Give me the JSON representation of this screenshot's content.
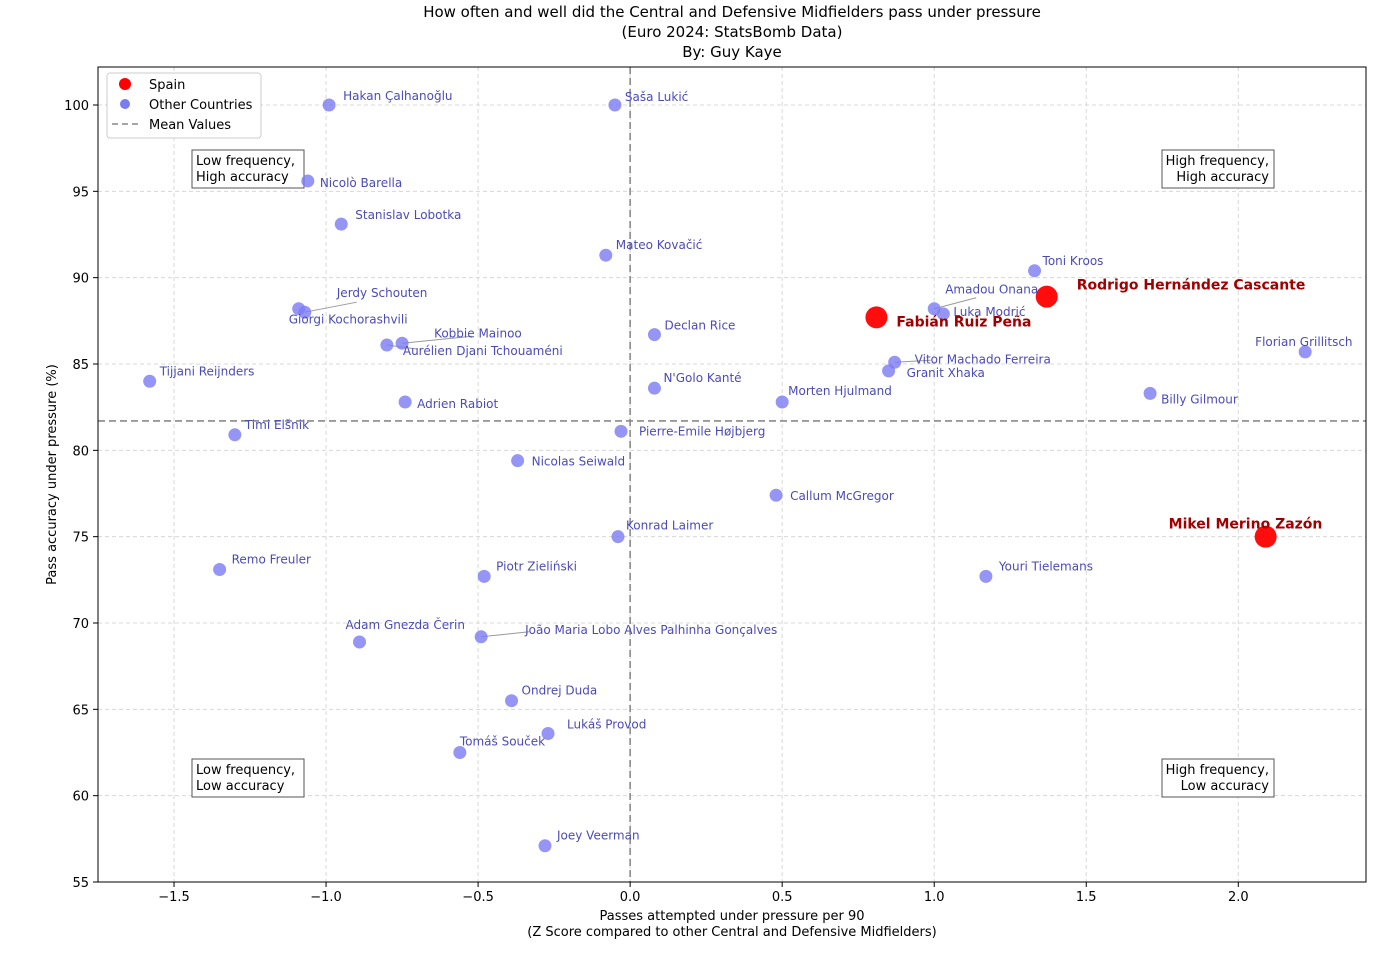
{
  "chart_data": {
    "type": "scatter",
    "title": [
      "How often and well did the Central and Defensive Midfielders pass under pressure",
      "(Euro 2024: StatsBomb Data)",
      "By: Guy Kaye"
    ],
    "xlabel": [
      "Passes attempted under pressure per 90",
      "(Z Score compared to other Central and Defensive Midfielders)"
    ],
    "ylabel": "Pass accuracy under pressure (%)",
    "xlim": [
      -1.75,
      2.42
    ],
    "ylim": [
      55,
      102.2
    ],
    "xticks": [
      -1.5,
      -1.0,
      -0.5,
      0.0,
      0.5,
      1.0,
      1.5,
      2.0
    ],
    "xtick_labels": [
      "−1.5",
      "−1.0",
      "−0.5",
      "0.0",
      "0.5",
      "1.0",
      "1.5",
      "2.0"
    ],
    "yticks": [
      55,
      60,
      65,
      70,
      75,
      80,
      85,
      90,
      95,
      100
    ],
    "ytick_labels": [
      "55",
      "60",
      "65",
      "70",
      "75",
      "80",
      "85",
      "90",
      "95",
      "100"
    ],
    "grid": true,
    "legend_position": "top-left",
    "legend": [
      {
        "label": "Spain",
        "kind": "marker",
        "color": "#ff0000"
      },
      {
        "label": "Other Countries",
        "kind": "marker",
        "color": "#7b7bf2"
      },
      {
        "label": "Mean Values",
        "kind": "dashed-line",
        "color": "#888888"
      }
    ],
    "mean_lines": {
      "x": 0.0,
      "y": 81.7
    },
    "quadrant_labels": [
      {
        "lines": [
          "Low frequency,",
          "High accuracy"
        ],
        "position": "top-left"
      },
      {
        "lines": [
          "High frequency,",
          "High accuracy"
        ],
        "position": "top-right"
      },
      {
        "lines": [
          "Low frequency,",
          "Low accuracy"
        ],
        "position": "bottom-left"
      },
      {
        "lines": [
          "High frequency,",
          "Low accuracy"
        ],
        "position": "bottom-right"
      }
    ],
    "colors": {
      "spain": "#ff0000",
      "spain_label": "#a00000",
      "other": "#7b7bf2",
      "other_label": "#4b4bb8"
    },
    "series": [
      {
        "name": "Spain",
        "points": [
          {
            "label": "Rodrigo Hernández Cascante",
            "x": 1.37,
            "y": 88.9
          },
          {
            "label": "Fabián Ruiz Peña",
            "x": 0.81,
            "y": 87.7
          },
          {
            "label": "Mikel Merino Zazón",
            "x": 2.09,
            "y": 75.0
          }
        ]
      },
      {
        "name": "Other Countries",
        "points": [
          {
            "label": "Hakan Çalhanoğlu",
            "x": -0.99,
            "y": 100.0
          },
          {
            "label": "Saša Lukić",
            "x": -0.05,
            "y": 100.0
          },
          {
            "label": "Nicolò Barella",
            "x": -1.06,
            "y": 95.6
          },
          {
            "label": "Stanislav Lobotka",
            "x": -0.95,
            "y": 93.1
          },
          {
            "label": "Mateo Kovačić",
            "x": -0.08,
            "y": 91.3
          },
          {
            "label": "Toni Kroos",
            "x": 1.33,
            "y": 90.4
          },
          {
            "label": "Jerdy Schouten",
            "x": -1.07,
            "y": 88.0
          },
          {
            "label": "Giorgi Kochorashvili",
            "x": -1.09,
            "y": 88.2
          },
          {
            "label": "Amadou Onana",
            "x": 1.0,
            "y": 88.2
          },
          {
            "label": "Luka Modrić",
            "x": 1.03,
            "y": 87.9
          },
          {
            "label": "Kobbie Mainoo",
            "x": -0.75,
            "y": 86.2
          },
          {
            "label": "Aurélien Djani Tchouaméni",
            "x": -0.8,
            "y": 86.1
          },
          {
            "label": "Declan Rice",
            "x": 0.08,
            "y": 86.7
          },
          {
            "label": "Florian Grillitsch",
            "x": 2.22,
            "y": 85.7
          },
          {
            "label": "Vitor Machado Ferreira",
            "x": 0.87,
            "y": 85.1
          },
          {
            "label": "Granit Xhaka",
            "x": 0.85,
            "y": 84.6
          },
          {
            "label": "Tijjani Reijnders",
            "x": -1.58,
            "y": 84.0
          },
          {
            "label": "N'Golo Kanté",
            "x": 0.08,
            "y": 83.6
          },
          {
            "label": "Billy Gilmour",
            "x": 1.71,
            "y": 83.3
          },
          {
            "label": "Morten Hjulmand",
            "x": 0.5,
            "y": 82.8
          },
          {
            "label": "Adrien Rabiot",
            "x": -0.74,
            "y": 82.8
          },
          {
            "label": "Timi Elšnik",
            "x": -1.3,
            "y": 80.9
          },
          {
            "label": "Pierre-Emile Højbjerg",
            "x": -0.03,
            "y": 81.1
          },
          {
            "label": "Nicolas Seiwald",
            "x": -0.37,
            "y": 79.4
          },
          {
            "label": "Callum McGregor",
            "x": 0.48,
            "y": 77.4
          },
          {
            "label": "Konrad Laimer",
            "x": -0.04,
            "y": 75.0
          },
          {
            "label": "Remo Freuler",
            "x": -1.35,
            "y": 73.1
          },
          {
            "label": "Piotr Zieliński",
            "x": -0.48,
            "y": 72.7
          },
          {
            "label": "Youri Tielemans",
            "x": 1.17,
            "y": 72.7
          },
          {
            "label": "Adam Gnezda Čerin",
            "x": -0.89,
            "y": 68.9
          },
          {
            "label": "João Maria Lobo Alves Palhinha Gonçalves",
            "x": -0.49,
            "y": 69.2
          },
          {
            "label": "Ondrej Duda",
            "x": -0.39,
            "y": 65.5
          },
          {
            "label": "Lukáš Provod",
            "x": -0.27,
            "y": 63.6
          },
          {
            "label": "Tomáš Souček",
            "x": -0.56,
            "y": 62.5
          },
          {
            "label": "Joey Veerman",
            "x": -0.28,
            "y": 57.1
          }
        ]
      }
    ]
  }
}
